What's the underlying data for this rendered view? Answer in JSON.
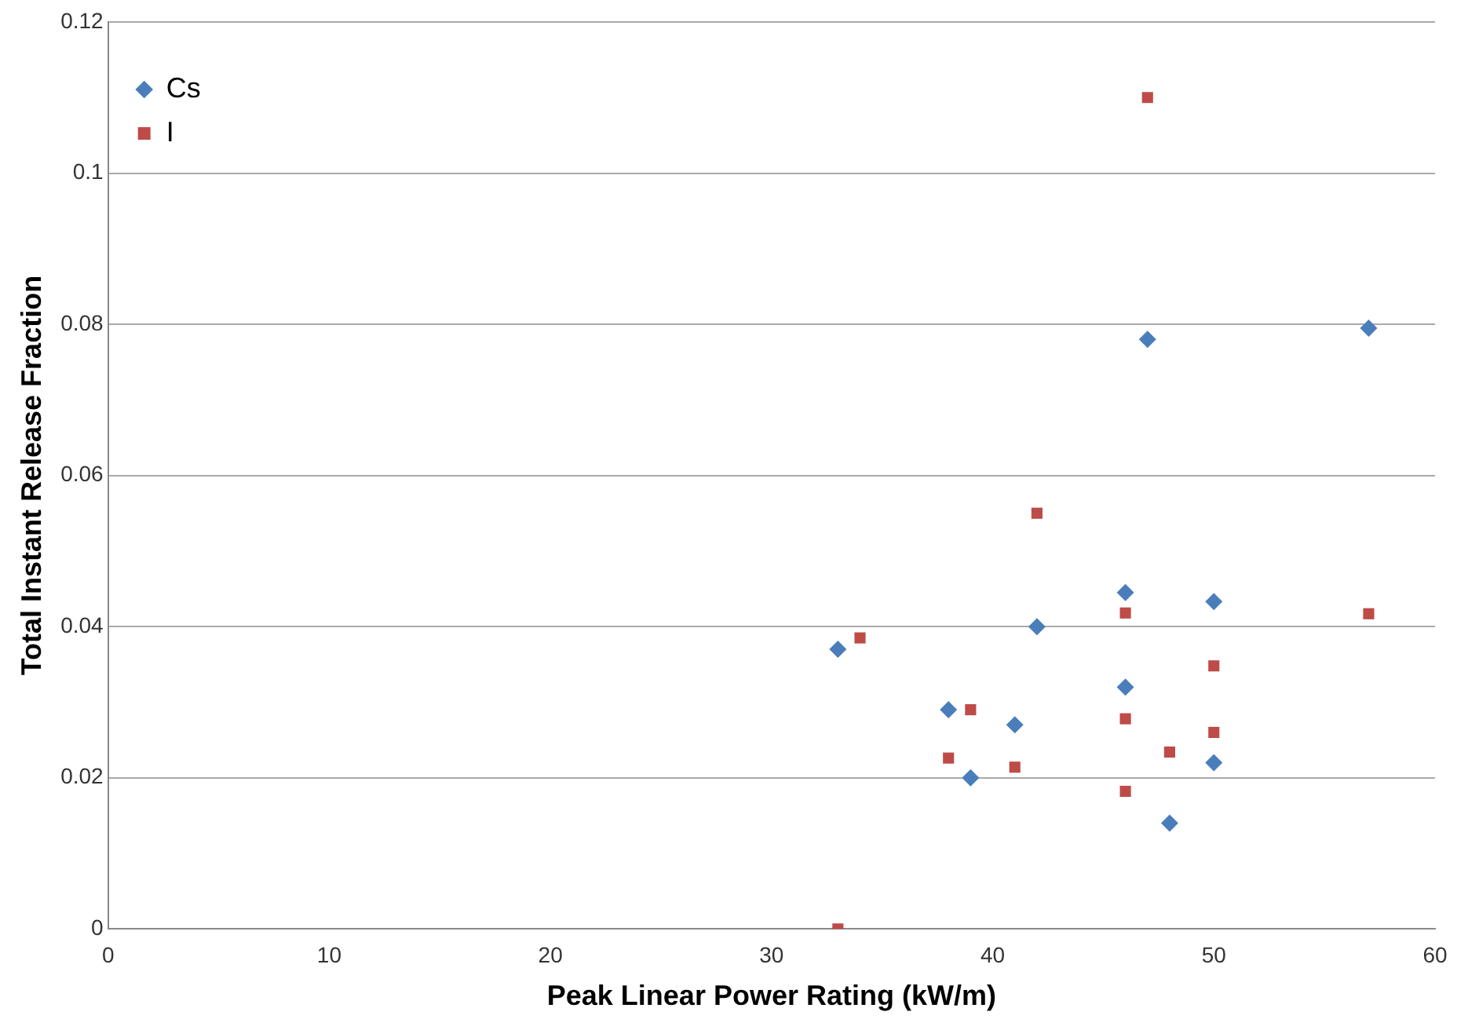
{
  "chart_data": {
    "type": "scatter",
    "xlabel": "Peak Linear Power Rating (kW/m)",
    "ylabel": "Total Instant Release Fraction",
    "xlim": [
      0,
      60
    ],
    "xticks": [
      0,
      10,
      20,
      30,
      40,
      50,
      60
    ],
    "ylim": [
      0,
      0.12
    ],
    "yticks": [
      0,
      0.02,
      0.04,
      0.06,
      0.08,
      0.1,
      0.12
    ],
    "grid": "y",
    "legend": "top left",
    "series": [
      {
        "name": "Cs",
        "color": "#4a7ebb",
        "marker": "diamond",
        "x": [
          33,
          38,
          39,
          41,
          42,
          46,
          46,
          47,
          48,
          50,
          50,
          57
        ],
        "values": [
          0.037,
          0.029,
          0.02,
          0.027,
          0.04,
          0.0445,
          0.032,
          0.078,
          0.014,
          0.0433,
          0.022,
          0.0795
        ]
      },
      {
        "name": "I",
        "color": "#be4b48",
        "marker": "square",
        "x": [
          33,
          34,
          38,
          39,
          41,
          42,
          46,
          46,
          46,
          47,
          48,
          50,
          50,
          57
        ],
        "values": [
          0,
          0.0385,
          0.0226,
          0.029,
          0.0214,
          0.055,
          0.0418,
          0.0278,
          0.0182,
          0.11,
          0.0234,
          0.0348,
          0.026,
          0.0417
        ]
      }
    ]
  }
}
